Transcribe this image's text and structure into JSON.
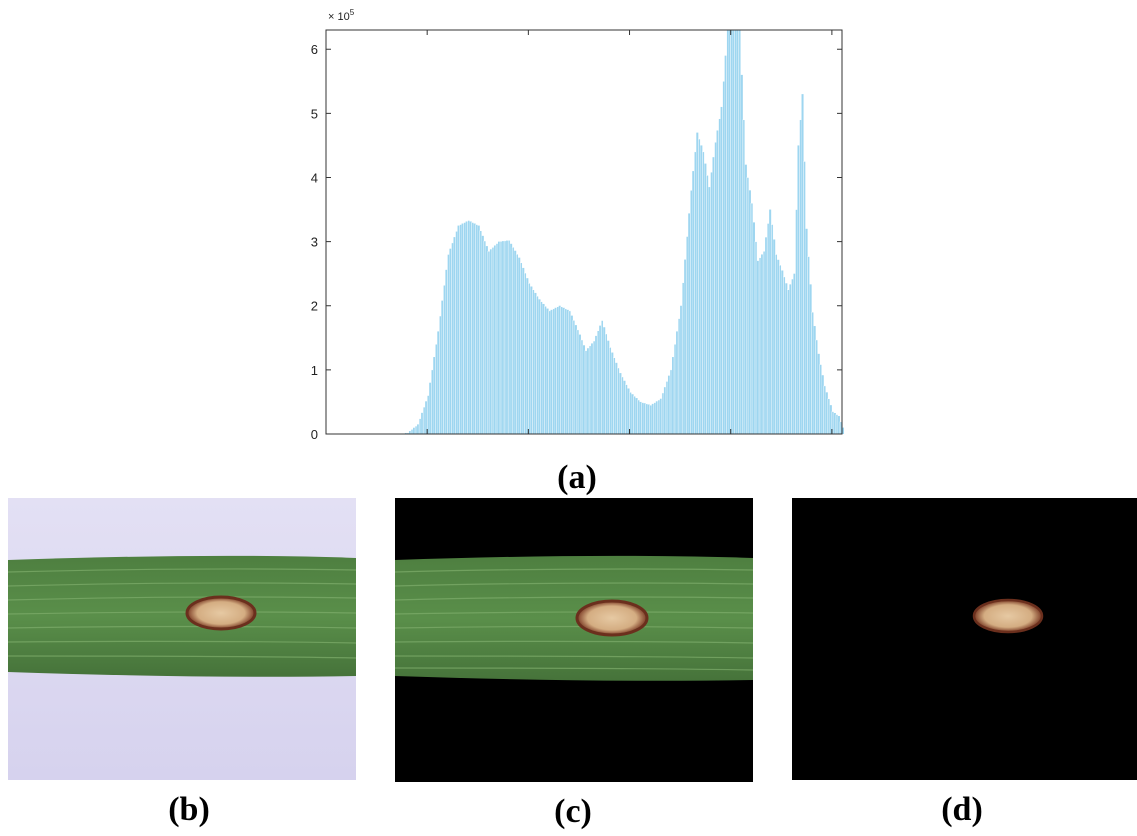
{
  "chart_data": {
    "type": "bar",
    "y_multiplier_label": "× 10",
    "y_multiplier_exponent": "5",
    "ylim": [
      0,
      6.3
    ],
    "xlim": [
      0,
      255
    ],
    "y_ticks": [
      0,
      1,
      2,
      3,
      4,
      5,
      6
    ],
    "x_ticks": [
      50,
      100,
      150,
      200,
      250
    ],
    "grid": false,
    "bar_color": "#9ed6f0",
    "bar_edge_color": "#ffffff",
    "histogram_profile": [
      [
        0,
        0
      ],
      [
        20,
        0
      ],
      [
        35,
        0
      ],
      [
        40,
        0.02
      ],
      [
        45,
        0.15
      ],
      [
        50,
        0.6
      ],
      [
        55,
        1.6
      ],
      [
        60,
        2.8
      ],
      [
        65,
        3.25
      ],
      [
        70,
        3.33
      ],
      [
        75,
        3.25
      ],
      [
        80,
        2.85
      ],
      [
        85,
        3.0
      ],
      [
        90,
        3.02
      ],
      [
        95,
        2.75
      ],
      [
        100,
        2.35
      ],
      [
        105,
        2.1
      ],
      [
        110,
        1.92
      ],
      [
        115,
        2.0
      ],
      [
        120,
        1.92
      ],
      [
        125,
        1.55
      ],
      [
        128,
        1.3
      ],
      [
        132,
        1.45
      ],
      [
        136,
        1.77
      ],
      [
        140,
        1.35
      ],
      [
        145,
        0.95
      ],
      [
        150,
        0.65
      ],
      [
        155,
        0.5
      ],
      [
        160,
        0.45
      ],
      [
        165,
        0.55
      ],
      [
        170,
        1.0
      ],
      [
        175,
        2.0
      ],
      [
        180,
        3.8
      ],
      [
        183,
        4.7
      ],
      [
        186,
        4.4
      ],
      [
        189,
        3.85
      ],
      [
        192,
        4.55
      ],
      [
        195,
        5.1
      ],
      [
        198,
        6.3
      ],
      [
        201,
        6.4
      ],
      [
        204,
        6.3
      ],
      [
        207,
        4.2
      ],
      [
        210,
        3.6
      ],
      [
        213,
        2.7
      ],
      [
        216,
        2.85
      ],
      [
        219,
        3.5
      ],
      [
        222,
        2.8
      ],
      [
        225,
        2.55
      ],
      [
        228,
        2.25
      ],
      [
        231,
        2.5
      ],
      [
        233,
        4.5
      ],
      [
        235,
        5.3
      ],
      [
        237,
        3.2
      ],
      [
        240,
        1.9
      ],
      [
        243,
        1.25
      ],
      [
        246,
        0.75
      ],
      [
        250,
        0.35
      ],
      [
        253,
        0.28
      ],
      [
        255,
        0.1
      ]
    ]
  },
  "captions": {
    "a": "(a)",
    "b": "(b)",
    "c": "(c)",
    "d": "(d)"
  },
  "images": {
    "b": "original-leaf-image",
    "c": "background-removed-leaf-image",
    "d": "segmented-lesion-image"
  },
  "colors": {
    "leaf_green": "#4f7f42",
    "background_lavender": "#dcd9f0",
    "lesion_tan": "#d9b48c",
    "lesion_rim": "#7a3a24",
    "mask_black": "#000000"
  }
}
